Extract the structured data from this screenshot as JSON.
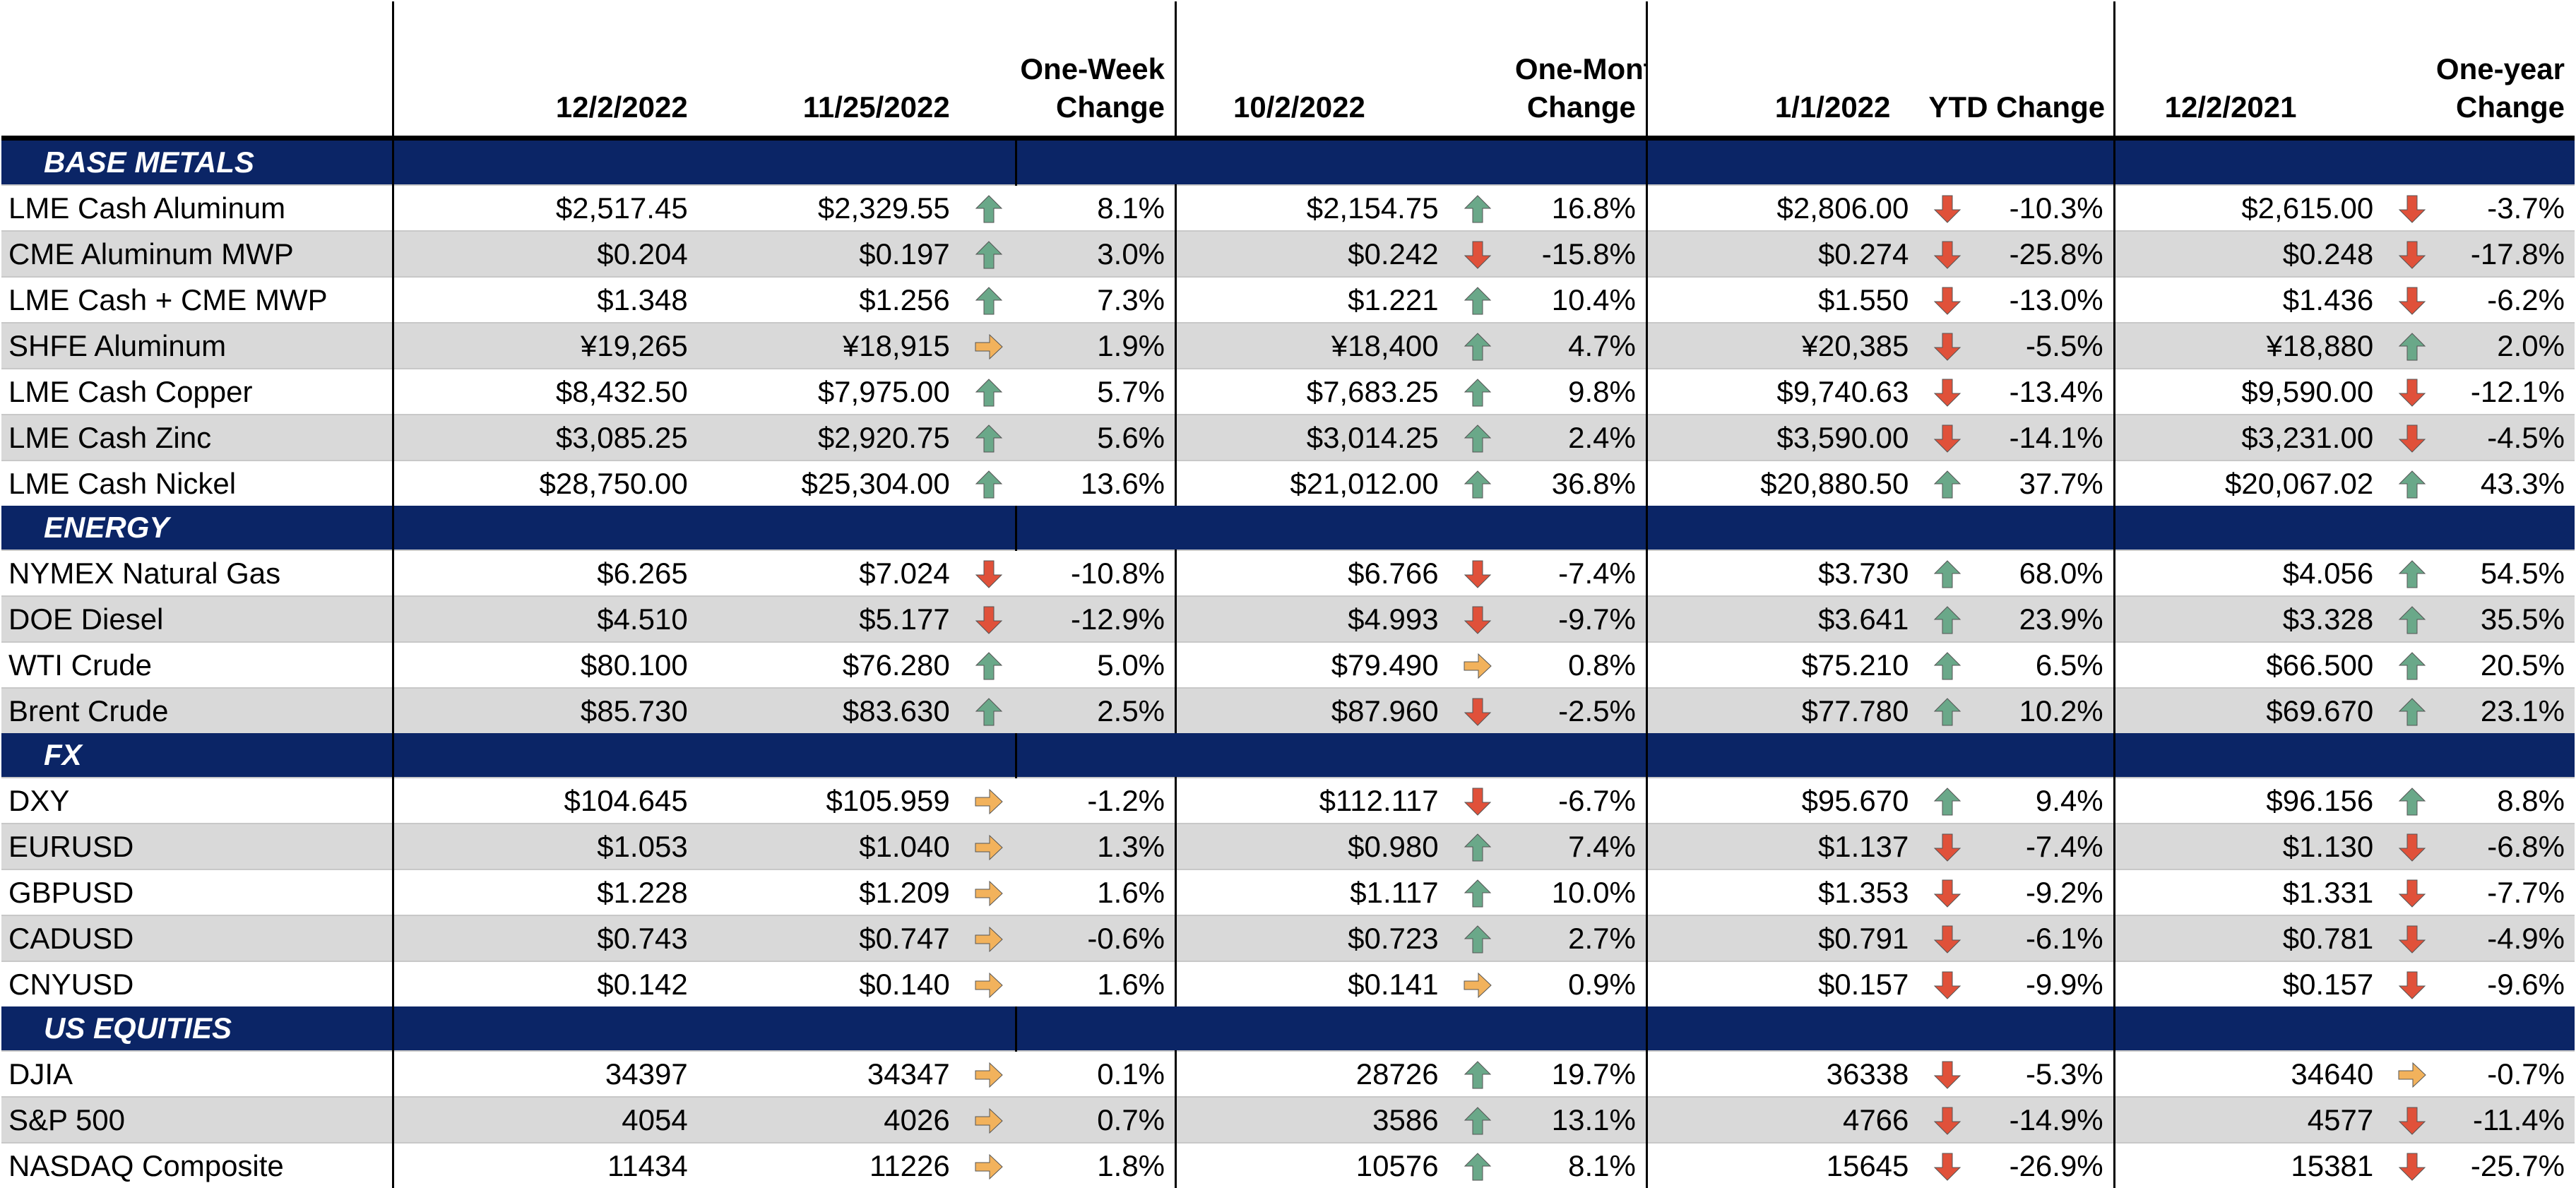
{
  "header": {
    "c1": "12/2/2022",
    "c2": "11/25/2022",
    "c3": "One-Week\nChange",
    "c4": "10/2/2022",
    "c5": "One-Month\nChange",
    "c6": "1/1/2022",
    "c7": "YTD Change",
    "c8": "12/2/2021",
    "c9": "One-year\nChange"
  },
  "colors": {
    "section_bg": "#0b2566",
    "up": "#6aa889",
    "down": "#e0513a",
    "flat": "#f2b25c",
    "shade": "#d9d9d9"
  },
  "sections": [
    {
      "title": "BASE METALS",
      "rows": [
        {
          "name": "LME Cash Aluminum",
          "cur": "$2,517.45",
          "wk": "$2,329.55",
          "wk_dir": "up",
          "wk_chg": "8.1%",
          "mo": "$2,154.75",
          "mo_dir": "up",
          "mo_chg": "16.8%",
          "ytd": "$2,806.00",
          "ytd_dir": "down",
          "ytd_chg": "-10.3%",
          "yr": "$2,615.00",
          "yr_dir": "down",
          "yr_chg": "-3.7%"
        },
        {
          "name": "CME Aluminum MWP",
          "cur": "$0.204",
          "wk": "$0.197",
          "wk_dir": "up",
          "wk_chg": "3.0%",
          "mo": "$0.242",
          "mo_dir": "down",
          "mo_chg": "-15.8%",
          "ytd": "$0.274",
          "ytd_dir": "down",
          "ytd_chg": "-25.8%",
          "yr": "$0.248",
          "yr_dir": "down",
          "yr_chg": "-17.8%"
        },
        {
          "name": "LME Cash + CME MWP",
          "cur": "$1.348",
          "wk": "$1.256",
          "wk_dir": "up",
          "wk_chg": "7.3%",
          "mo": "$1.221",
          "mo_dir": "up",
          "mo_chg": "10.4%",
          "ytd": "$1.550",
          "ytd_dir": "down",
          "ytd_chg": "-13.0%",
          "yr": "$1.436",
          "yr_dir": "down",
          "yr_chg": "-6.2%"
        },
        {
          "name": "SHFE Aluminum",
          "cur": "¥19,265",
          "wk": "¥18,915",
          "wk_dir": "flat",
          "wk_chg": "1.9%",
          "mo": "¥18,400",
          "mo_dir": "up",
          "mo_chg": "4.7%",
          "ytd": "¥20,385",
          "ytd_dir": "down",
          "ytd_chg": "-5.5%",
          "yr": "¥18,880",
          "yr_dir": "up",
          "yr_chg": "2.0%"
        },
        {
          "name": "LME Cash Copper",
          "cur": "$8,432.50",
          "wk": "$7,975.00",
          "wk_dir": "up",
          "wk_chg": "5.7%",
          "mo": "$7,683.25",
          "mo_dir": "up",
          "mo_chg": "9.8%",
          "ytd": "$9,740.63",
          "ytd_dir": "down",
          "ytd_chg": "-13.4%",
          "yr": "$9,590.00",
          "yr_dir": "down",
          "yr_chg": "-12.1%"
        },
        {
          "name": "LME Cash Zinc",
          "cur": "$3,085.25",
          "wk": "$2,920.75",
          "wk_dir": "up",
          "wk_chg": "5.6%",
          "mo": "$3,014.25",
          "mo_dir": "up",
          "mo_chg": "2.4%",
          "ytd": "$3,590.00",
          "ytd_dir": "down",
          "ytd_chg": "-14.1%",
          "yr": "$3,231.00",
          "yr_dir": "down",
          "yr_chg": "-4.5%"
        },
        {
          "name": "LME Cash Nickel",
          "cur": "$28,750.00",
          "wk": "$25,304.00",
          "wk_dir": "up",
          "wk_chg": "13.6%",
          "mo": "$21,012.00",
          "mo_dir": "up",
          "mo_chg": "36.8%",
          "ytd": "$20,880.50",
          "ytd_dir": "up",
          "ytd_chg": "37.7%",
          "yr": "$20,067.02",
          "yr_dir": "up",
          "yr_chg": "43.3%"
        }
      ]
    },
    {
      "title": "ENERGY",
      "rows": [
        {
          "name": "NYMEX Natural Gas",
          "cur": "$6.265",
          "wk": "$7.024",
          "wk_dir": "down",
          "wk_chg": "-10.8%",
          "mo": "$6.766",
          "mo_dir": "down",
          "mo_chg": "-7.4%",
          "ytd": "$3.730",
          "ytd_dir": "up",
          "ytd_chg": "68.0%",
          "yr": "$4.056",
          "yr_dir": "up",
          "yr_chg": "54.5%"
        },
        {
          "name": "DOE Diesel",
          "cur": "$4.510",
          "wk": "$5.177",
          "wk_dir": "down",
          "wk_chg": "-12.9%",
          "mo": "$4.993",
          "mo_dir": "down",
          "mo_chg": "-9.7%",
          "ytd": "$3.641",
          "ytd_dir": "up",
          "ytd_chg": "23.9%",
          "yr": "$3.328",
          "yr_dir": "up",
          "yr_chg": "35.5%"
        },
        {
          "name": "WTI Crude",
          "cur": "$80.100",
          "wk": "$76.280",
          "wk_dir": "up",
          "wk_chg": "5.0%",
          "mo": "$79.490",
          "mo_dir": "flat",
          "mo_chg": "0.8%",
          "ytd": "$75.210",
          "ytd_dir": "up",
          "ytd_chg": "6.5%",
          "yr": "$66.500",
          "yr_dir": "up",
          "yr_chg": "20.5%"
        },
        {
          "name": "Brent Crude",
          "cur": "$85.730",
          "wk": "$83.630",
          "wk_dir": "up",
          "wk_chg": "2.5%",
          "mo": "$87.960",
          "mo_dir": "down",
          "mo_chg": "-2.5%",
          "ytd": "$77.780",
          "ytd_dir": "up",
          "ytd_chg": "10.2%",
          "yr": "$69.670",
          "yr_dir": "up",
          "yr_chg": "23.1%"
        }
      ]
    },
    {
      "title": "FX",
      "rows": [
        {
          "name": "DXY",
          "cur": "$104.645",
          "wk": "$105.959",
          "wk_dir": "flat",
          "wk_chg": "-1.2%",
          "mo": "$112.117",
          "mo_dir": "down",
          "mo_chg": "-6.7%",
          "ytd": "$95.670",
          "ytd_dir": "up",
          "ytd_chg": "9.4%",
          "yr": "$96.156",
          "yr_dir": "up",
          "yr_chg": "8.8%"
        },
        {
          "name": "EURUSD",
          "cur": "$1.053",
          "wk": "$1.040",
          "wk_dir": "flat",
          "wk_chg": "1.3%",
          "mo": "$0.980",
          "mo_dir": "up",
          "mo_chg": "7.4%",
          "ytd": "$1.137",
          "ytd_dir": "down",
          "ytd_chg": "-7.4%",
          "yr": "$1.130",
          "yr_dir": "down",
          "yr_chg": "-6.8%"
        },
        {
          "name": "GBPUSD",
          "cur": "$1.228",
          "wk": "$1.209",
          "wk_dir": "flat",
          "wk_chg": "1.6%",
          "mo": "$1.117",
          "mo_dir": "up",
          "mo_chg": "10.0%",
          "ytd": "$1.353",
          "ytd_dir": "down",
          "ytd_chg": "-9.2%",
          "yr": "$1.331",
          "yr_dir": "down",
          "yr_chg": "-7.7%"
        },
        {
          "name": "CADUSD",
          "cur": "$0.743",
          "wk": "$0.747",
          "wk_dir": "flat",
          "wk_chg": "-0.6%",
          "mo": "$0.723",
          "mo_dir": "up",
          "mo_chg": "2.7%",
          "ytd": "$0.791",
          "ytd_dir": "down",
          "ytd_chg": "-6.1%",
          "yr": "$0.781",
          "yr_dir": "down",
          "yr_chg": "-4.9%"
        },
        {
          "name": "CNYUSD",
          "cur": "$0.142",
          "wk": "$0.140",
          "wk_dir": "flat",
          "wk_chg": "1.6%",
          "mo": "$0.141",
          "mo_dir": "flat",
          "mo_chg": "0.9%",
          "ytd": "$0.157",
          "ytd_dir": "down",
          "ytd_chg": "-9.9%",
          "yr": "$0.157",
          "yr_dir": "down",
          "yr_chg": "-9.6%"
        }
      ]
    },
    {
      "title": "US EQUITIES",
      "rows": [
        {
          "name": "DJIA",
          "cur": "34397",
          "wk": "34347",
          "wk_dir": "flat",
          "wk_chg": "0.1%",
          "mo": "28726",
          "mo_dir": "up",
          "mo_chg": "19.7%",
          "ytd": "36338",
          "ytd_dir": "down",
          "ytd_chg": "-5.3%",
          "yr": "34640",
          "yr_dir": "flat",
          "yr_chg": "-0.7%"
        },
        {
          "name": "S&P 500",
          "cur": "4054",
          "wk": "4026",
          "wk_dir": "flat",
          "wk_chg": "0.7%",
          "mo": "3586",
          "mo_dir": "up",
          "mo_chg": "13.1%",
          "ytd": "4766",
          "ytd_dir": "down",
          "ytd_chg": "-14.9%",
          "yr": "4577",
          "yr_dir": "down",
          "yr_chg": "-11.4%"
        },
        {
          "name": "NASDAQ Composite",
          "cur": "11434",
          "wk": "11226",
          "wk_dir": "flat",
          "wk_chg": "1.8%",
          "mo": "10576",
          "mo_dir": "up",
          "mo_chg": "8.1%",
          "ytd": "15645",
          "ytd_dir": "down",
          "ytd_chg": "-26.9%",
          "yr": "15381",
          "yr_dir": "down",
          "yr_chg": "-25.7%"
        }
      ]
    }
  ]
}
